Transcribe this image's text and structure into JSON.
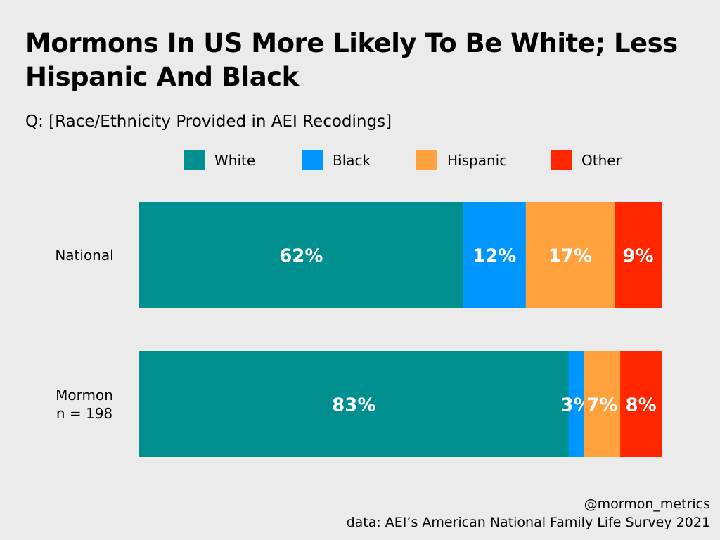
{
  "chart_data": {
    "type": "bar",
    "orientation": "horizontal-stacked-100",
    "title": "Mormons In US More Likely To Be White; Less Hispanic And Black",
    "subtitle": "Q: [Race/Ethnicity Provided in AEI Recodings]",
    "legend_position": "top",
    "categories": [
      {
        "label": "National",
        "sublabel": ""
      },
      {
        "label": "Mormon",
        "sublabel": "n = 198"
      }
    ],
    "series": [
      {
        "name": "White",
        "color": "#008f8f",
        "values": [
          62,
          83
        ]
      },
      {
        "name": "Black",
        "color": "#0096ff",
        "values": [
          12,
          3
        ]
      },
      {
        "name": "Hispanic",
        "color": "#ffa13d",
        "values": [
          17,
          7
        ]
      },
      {
        "name": "Other",
        "color": "#ff2600",
        "values": [
          9,
          8
        ]
      }
    ],
    "value_suffix": "%"
  },
  "credit": {
    "handle": "@mormon_metrics",
    "source": "data: AEI’s American National Family Life Survey 2021"
  }
}
